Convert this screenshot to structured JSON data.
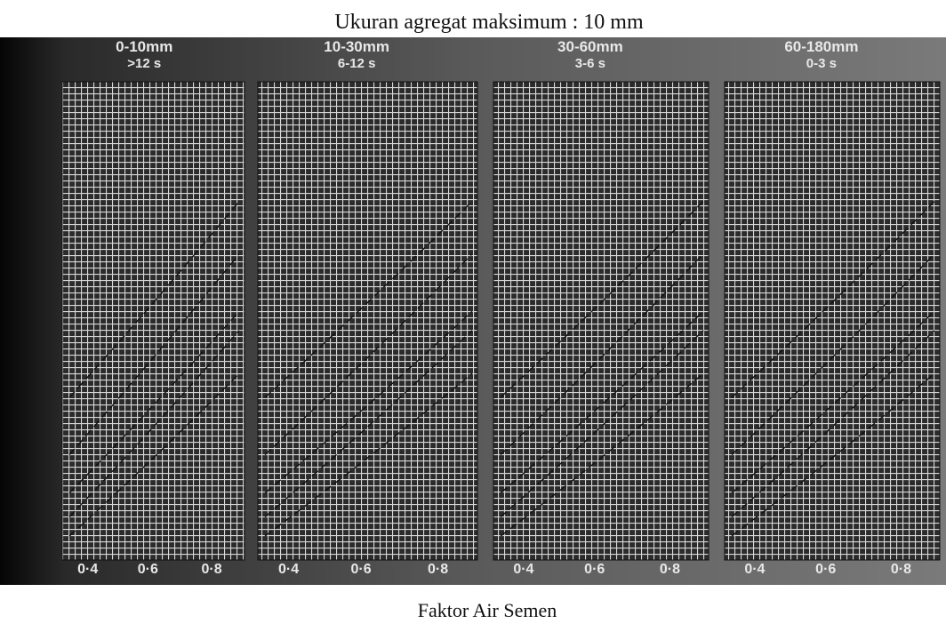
{
  "figure": {
    "title": "Ukuran agregat maksimum : 10 mm",
    "panels": [
      {
        "size": "0-10mm",
        "time": ">12 s",
        "xticks": [
          "0·4",
          "0·6",
          "0·8"
        ]
      },
      {
        "size": "10-30mm",
        "time": "6-12 s",
        "xticks": [
          "0·4",
          "0·6",
          "0·8"
        ]
      },
      {
        "size": "30-60mm",
        "time": "3-6 s",
        "xticks": [
          "0·4",
          "0·6",
          "0·8"
        ]
      },
      {
        "size": "60-180mm",
        "time": "0-3 s",
        "xticks": [
          "0·4",
          "0·6",
          "0·8"
        ]
      }
    ],
    "x_label": "Faktor Air Semen"
  }
}
